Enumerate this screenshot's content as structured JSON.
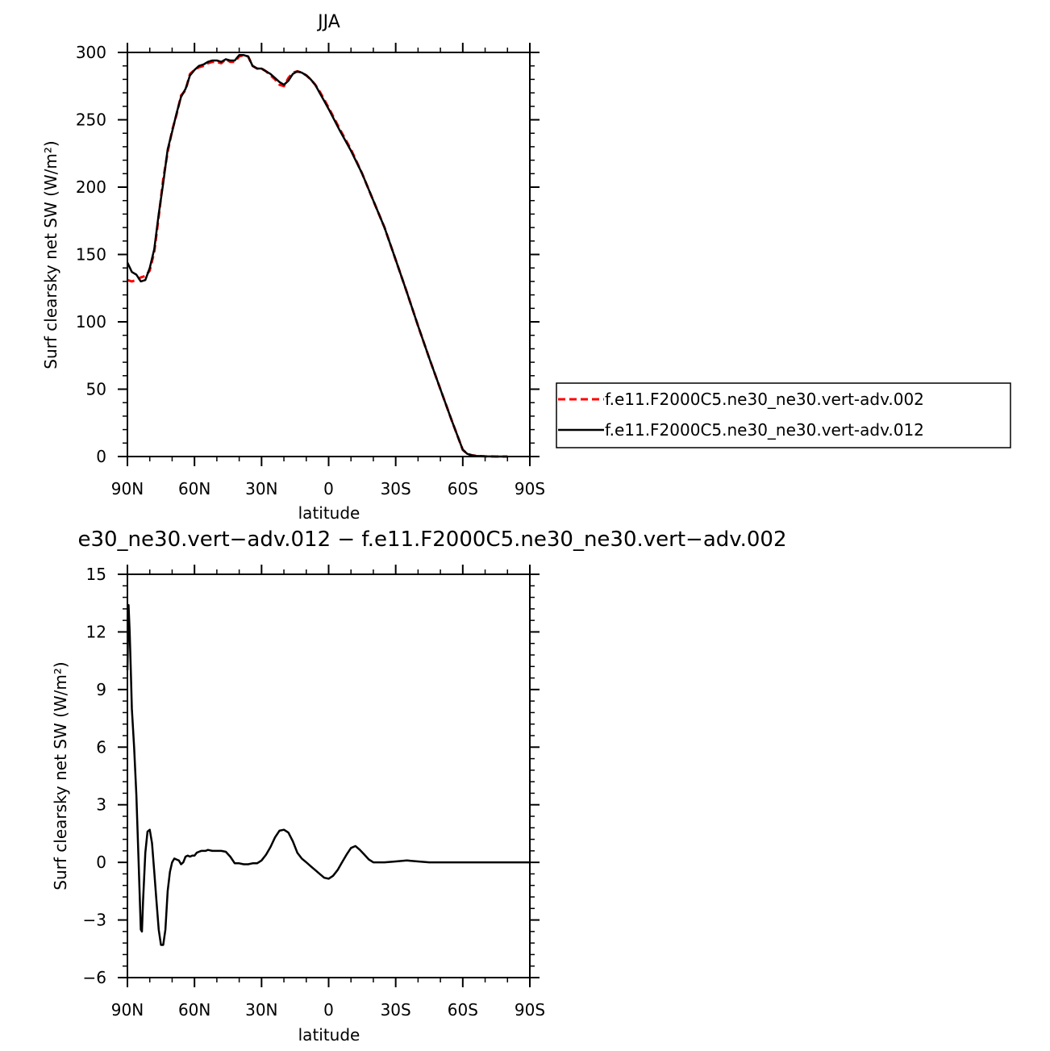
{
  "chart_data": [
    {
      "type": "line",
      "title": "JJA",
      "xlabel": "latitude",
      "ylabel": "Surf clearsky net SW (W/m²)",
      "xlim": [
        90,
        -90
      ],
      "ylim": [
        0,
        300
      ],
      "x_ticks": [
        90,
        60,
        30,
        0,
        -30,
        -60,
        -90
      ],
      "x_tick_labels": [
        "90N",
        "60N",
        "30N",
        "0",
        "30S",
        "60S",
        "90S"
      ],
      "y_ticks": [
        0,
        50,
        100,
        150,
        200,
        250,
        300
      ],
      "y_tick_labels": [
        "0",
        "50",
        "100",
        "150",
        "200",
        "250",
        "300"
      ],
      "legend_position": "right",
      "series": [
        {
          "name": "f.e11.F2000C5.ne30_ne30.vert-adv.002",
          "color": "#ff0000",
          "dash": "dashed",
          "x": [
            90,
            88,
            86,
            84,
            82,
            80,
            78,
            76,
            74,
            72,
            70,
            68,
            66,
            64,
            62,
            60,
            58,
            56,
            54,
            52,
            50,
            48,
            46,
            44,
            42,
            40,
            38,
            36,
            34,
            32,
            30,
            28,
            26,
            24,
            22,
            20,
            18,
            16,
            14,
            12,
            10,
            8,
            6,
            4,
            2,
            0,
            -5,
            -10,
            -15,
            -20,
            -25,
            -30,
            -35,
            -40,
            -45,
            -50,
            -55,
            -60,
            -62,
            -64,
            -66,
            -68,
            -70,
            -75,
            -80
          ],
          "y": [
            131,
            130,
            131,
            133,
            134,
            138,
            152,
            178,
            206,
            226,
            242,
            254,
            268,
            272,
            284,
            287,
            289,
            290,
            292,
            293,
            293,
            292,
            295,
            293,
            293,
            297,
            298,
            297,
            290,
            288,
            288,
            286,
            283,
            280,
            276,
            275,
            281,
            285,
            286,
            285,
            283,
            280,
            276,
            271,
            265,
            259,
            243,
            228,
            210,
            190,
            170,
            146,
            122,
            97,
            73,
            50,
            27,
            5,
            2,
            1,
            0.5,
            0.3,
            0.1,
            0,
            0
          ]
        },
        {
          "name": "f.e11.F2000C5.ne30_ne30.vert-adv.012",
          "color": "#000000",
          "dash": "solid",
          "x": [
            90,
            88,
            86,
            84,
            82,
            80,
            78,
            76,
            74,
            72,
            70,
            68,
            66,
            64,
            62,
            60,
            58,
            56,
            54,
            52,
            50,
            48,
            46,
            44,
            42,
            40,
            38,
            36,
            34,
            32,
            30,
            28,
            26,
            24,
            22,
            20,
            18,
            16,
            14,
            12,
            10,
            8,
            6,
            4,
            2,
            0,
            -5,
            -10,
            -15,
            -20,
            -25,
            -30,
            -35,
            -40,
            -45,
            -50,
            -55,
            -60,
            -62,
            -64,
            -66,
            -68,
            -70,
            -75,
            -80
          ],
          "y": [
            144,
            137,
            135,
            130,
            131,
            140,
            154,
            180,
            203,
            228,
            241,
            255,
            267,
            273,
            283,
            287,
            290,
            291,
            293,
            294,
            294,
            293,
            295,
            294,
            294,
            298,
            298,
            297,
            290,
            288,
            288,
            286,
            284,
            281,
            278,
            276,
            279,
            284,
            286,
            285,
            283,
            280,
            276,
            270,
            264,
            258,
            242,
            227,
            210,
            190,
            170,
            146,
            122,
            97,
            73,
            50,
            27,
            5,
            2,
            1,
            0.5,
            0.3,
            0.1,
            0,
            0
          ]
        }
      ]
    },
    {
      "type": "line",
      "title": "e30_ne30.vert−adv.012 − f.e11.F2000C5.ne30_ne30.vert−adv.002",
      "xlabel": "latitude",
      "ylabel": "Surf clearsky net SW (W/m²)",
      "xlim": [
        90,
        -90
      ],
      "ylim": [
        -6,
        15
      ],
      "x_ticks": [
        90,
        60,
        30,
        0,
        -30,
        -60,
        -90
      ],
      "x_tick_labels": [
        "90N",
        "60N",
        "30N",
        "0",
        "30S",
        "60S",
        "90S"
      ],
      "y_ticks": [
        -6,
        -3,
        0,
        3,
        6,
        9,
        12,
        15
      ],
      "y_tick_labels": [
        "−6",
        "−3",
        "0",
        "3",
        "6",
        "9",
        "12",
        "15"
      ],
      "series": [
        {
          "color": "#000000",
          "dash": "solid",
          "x": [
            90,
            89.5,
            89,
            88.5,
            88,
            87,
            86,
            85,
            84,
            83.5,
            83,
            82,
            81,
            80,
            79,
            78,
            77,
            76,
            75,
            74,
            73,
            72,
            71,
            70,
            69,
            68,
            67,
            66,
            65,
            64,
            63,
            62,
            61,
            60,
            59,
            58,
            57,
            56,
            55,
            54,
            52,
            50,
            48,
            46,
            44,
            42,
            40,
            38,
            36,
            34,
            32,
            30,
            28,
            26,
            24,
            22,
            20,
            18,
            16,
            14,
            12,
            10,
            8,
            6,
            4,
            2,
            0,
            -2,
            -4,
            -6,
            -8,
            -10,
            -12,
            -14,
            -16,
            -18,
            -20,
            -25,
            -30,
            -35,
            -40,
            -45,
            -50,
            -55,
            -60,
            -65,
            -70,
            -75,
            -80,
            -85,
            -90
          ],
          "y": [
            10,
            13.4,
            12,
            10,
            8,
            6,
            3.5,
            0,
            -3.5,
            -3.6,
            -2,
            0.5,
            1.6,
            1.7,
            1,
            -0.5,
            -2,
            -3.5,
            -4.3,
            -4.3,
            -3.5,
            -1.5,
            -0.5,
            0,
            0.2,
            0.15,
            0.1,
            -0.1,
            0,
            0.3,
            0.35,
            0.3,
            0.35,
            0.35,
            0.5,
            0.55,
            0.6,
            0.6,
            0.6,
            0.65,
            0.6,
            0.6,
            0.6,
            0.55,
            0.3,
            -0.05,
            -0.05,
            -0.1,
            -0.1,
            -0.05,
            -0.05,
            0.1,
            0.4,
            0.8,
            1.3,
            1.65,
            1.7,
            1.55,
            1.1,
            0.5,
            0.2,
            0,
            -0.2,
            -0.4,
            -0.6,
            -0.8,
            -0.85,
            -0.7,
            -0.4,
            0,
            0.4,
            0.75,
            0.85,
            0.65,
            0.4,
            0.15,
            0,
            0,
            0.05,
            0.1,
            0.05,
            0,
            0,
            0,
            0,
            0,
            0,
            0,
            0,
            0,
            0
          ]
        }
      ]
    }
  ]
}
